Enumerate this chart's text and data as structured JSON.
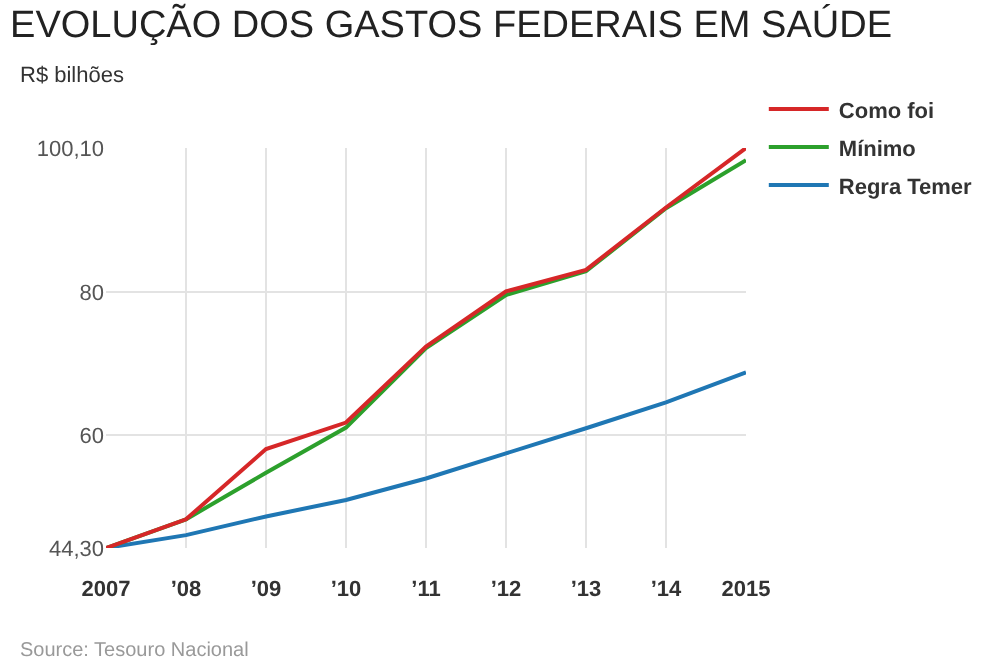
{
  "chart_data": {
    "type": "line",
    "title": "EVOLUÇÃO DOS GASTOS FEDERAIS EM SAÚDE",
    "ylabel": "R$ bilhões",
    "categories": [
      "2007",
      "’08",
      "’09",
      "’10",
      "’11",
      "’12",
      "’13",
      "’14",
      "2015"
    ],
    "series": [
      {
        "name": "Como foi",
        "color": "#d62728",
        "values": [
          44.3,
          48.3,
          58.1,
          61.8,
          72.4,
          80.1,
          83.1,
          91.8,
          100.1
        ]
      },
      {
        "name": "Mínimo",
        "color": "#2ca02c",
        "values": [
          44.3,
          48.3,
          54.8,
          61.1,
          72.2,
          79.6,
          82.9,
          91.7,
          98.4
        ]
      },
      {
        "name": "Regra Temer",
        "color": "#1f77b4",
        "values": [
          44.3,
          46.1,
          48.7,
          51.0,
          54.0,
          57.5,
          61.0,
          64.6,
          68.8
        ]
      }
    ],
    "ylim": [
      44.3,
      100.1
    ],
    "yticks": [
      {
        "value": 44.3,
        "label": "44,30"
      },
      60,
      80,
      {
        "value": 100.1,
        "label": "100,10"
      }
    ],
    "grid": true,
    "legend": "top right",
    "marker": "none",
    "line_style": "solid",
    "annotations": [
      "Source: Tesouro Nacional"
    ]
  }
}
